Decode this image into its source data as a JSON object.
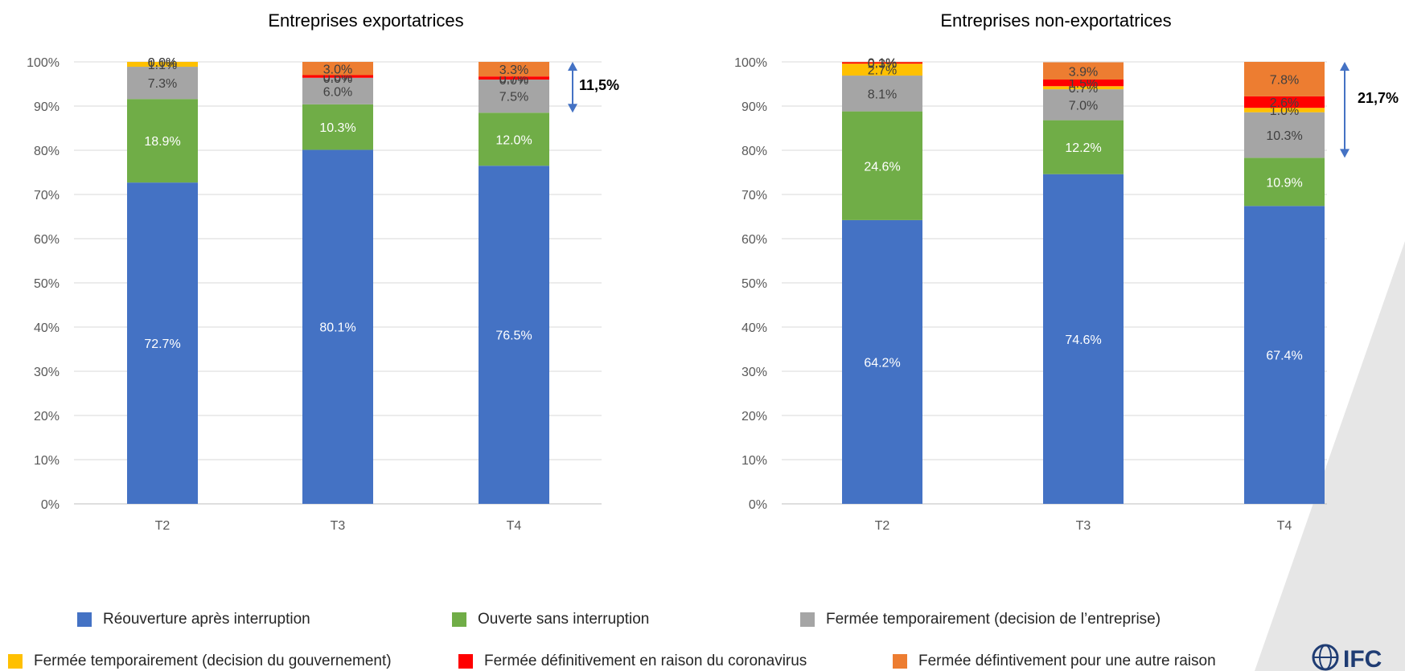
{
  "chart_data": [
    {
      "type": "bar",
      "stacked": true,
      "title": "Entreprises exportatrices",
      "categories": [
        "T2",
        "T3",
        "T4"
      ],
      "y_ticks": [
        "0%",
        "10%",
        "20%",
        "30%",
        "40%",
        "50%",
        "60%",
        "70%",
        "80%",
        "90%",
        "100%"
      ],
      "ylim": [
        0,
        100
      ],
      "series": [
        {
          "name": "Réouverture après interruption",
          "color": "#4472c4",
          "values": [
            72.7,
            80.1,
            76.5
          ],
          "labels": [
            "72.7%",
            "80.1%",
            "76.5%"
          ]
        },
        {
          "name": "Ouverte sans interruption",
          "color": "#70ad47",
          "values": [
            18.9,
            10.3,
            12.0
          ],
          "labels": [
            "18.9%",
            "10.3%",
            "12.0%"
          ]
        },
        {
          "name": "Fermée temporairement (decision de l’entreprise)",
          "color": "#a5a5a5",
          "values": [
            7.3,
            6.0,
            7.5
          ],
          "labels": [
            "7.3%",
            "6.0%",
            "7.5%"
          ]
        },
        {
          "name": "Fermée temporairement (decision du gouvernement)",
          "color": "#ffc000",
          "values": [
            1.1,
            0.0,
            0.0
          ],
          "labels": [
            "1.1%",
            "0.0%",
            "0.0%"
          ]
        },
        {
          "name": "Fermée définitivement en raison du coronavirus",
          "color": "#ff0000",
          "values": [
            0.0,
            0.6,
            0.7
          ],
          "labels": [
            "0.0%",
            "0.6%",
            "0.7%"
          ]
        },
        {
          "name": "Fermée défintivement pour une autre raison",
          "color": "#ed7d31",
          "values": [
            0.0,
            3.0,
            3.3
          ],
          "labels": [
            "0.0%",
            "3.0%",
            "3.3%"
          ]
        }
      ],
      "annotation": {
        "text": "11,5%",
        "from": 100,
        "to": 88.5
      }
    },
    {
      "type": "bar",
      "stacked": true,
      "title": "Entreprises non-exportatrices",
      "categories": [
        "T2",
        "T3",
        "T4"
      ],
      "y_ticks": [
        "0%",
        "10%",
        "20%",
        "30%",
        "40%",
        "50%",
        "60%",
        "70%",
        "80%",
        "90%",
        "100%"
      ],
      "ylim": [
        0,
        100
      ],
      "series": [
        {
          "name": "Réouverture après interruption",
          "color": "#4472c4",
          "values": [
            64.2,
            74.6,
            67.4
          ],
          "labels": [
            "64.2%",
            "74.6%",
            "67.4%"
          ]
        },
        {
          "name": "Ouverte sans interruption",
          "color": "#70ad47",
          "values": [
            24.6,
            12.2,
            10.9
          ],
          "labels": [
            "24.6%",
            "12.2%",
            "10.9%"
          ]
        },
        {
          "name": "Fermée temporairement (decision de l’entreprise)",
          "color": "#a5a5a5",
          "values": [
            8.1,
            7.0,
            10.3
          ],
          "labels": [
            "8.1%",
            "7.0%",
            "10.3%"
          ]
        },
        {
          "name": "Fermée temporairement (decision du gouvernement)",
          "color": "#ffc000",
          "values": [
            2.7,
            0.7,
            1.0
          ],
          "labels": [
            "2.7%",
            "0.7%",
            "1.0%"
          ]
        },
        {
          "name": "Fermée définitivement en raison du coronavirus",
          "color": "#ff0000",
          "values": [
            0.3,
            1.5,
            2.6
          ],
          "labels": [
            "0.3%",
            "1.5%",
            "2.6%"
          ]
        },
        {
          "name": "Fermée défintivement pour une autre raison",
          "color": "#ed7d31",
          "values": [
            0.1,
            3.9,
            7.8
          ],
          "labels": [
            "0.1%",
            "3.9%",
            "7.8%"
          ]
        }
      ],
      "annotation": {
        "text": "21,7%",
        "from": 100,
        "to": 78.3
      }
    }
  ],
  "legend": [
    {
      "label": "Réouverture après interruption",
      "color": "#4472c4"
    },
    {
      "label": "Ouverte sans interruption",
      "color": "#70ad47"
    },
    {
      "label": "Fermée temporairement (decision de l’entreprise)",
      "color": "#a5a5a5"
    },
    {
      "label": "Fermée temporairement (decision du gouvernement)",
      "color": "#ffc000"
    },
    {
      "label": "Fermée définitivement en raison du coronavirus",
      "color": "#ff0000"
    },
    {
      "label": "Fermée défintivement pour une autre raison",
      "color": "#ed7d31"
    }
  ],
  "logo": {
    "text": "IFC"
  }
}
